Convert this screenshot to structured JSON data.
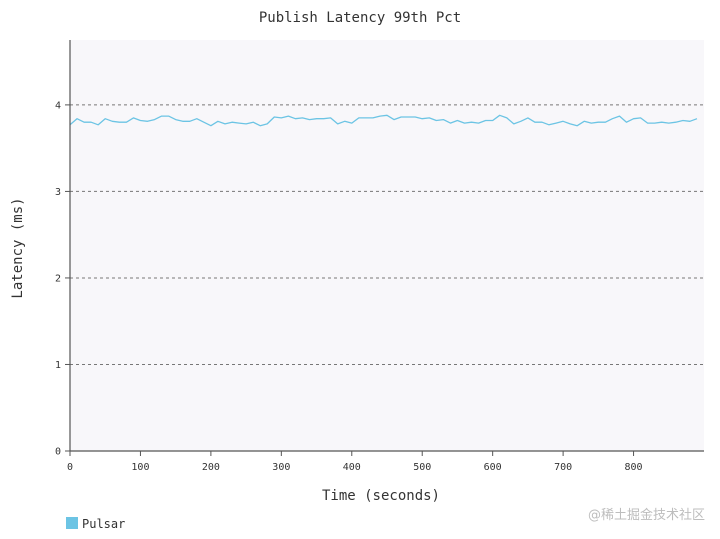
{
  "chart_data": {
    "type": "line",
    "title": "Publish Latency 99th Pct",
    "xlabel": "Time (seconds)",
    "ylabel": "Latency (ms)",
    "xlim": [
      0,
      900
    ],
    "ylim": [
      0,
      4.75
    ],
    "x_ticks": [
      0,
      100,
      200,
      300,
      400,
      500,
      600,
      700,
      800
    ],
    "y_ticks": [
      0,
      1,
      2,
      3,
      4
    ],
    "grid": "horizontal-dashed",
    "legend_position": "bottom-left",
    "series": [
      {
        "name": "Pulsar",
        "color": "#6cc4e4",
        "x": [
          0,
          10,
          20,
          30,
          40,
          50,
          60,
          70,
          80,
          90,
          100,
          110,
          120,
          130,
          140,
          150,
          160,
          170,
          180,
          190,
          200,
          210,
          220,
          230,
          240,
          250,
          260,
          270,
          280,
          290,
          300,
          310,
          320,
          330,
          340,
          350,
          360,
          370,
          380,
          390,
          400,
          410,
          420,
          430,
          440,
          450,
          460,
          470,
          480,
          490,
          500,
          510,
          520,
          530,
          540,
          550,
          560,
          570,
          580,
          590,
          600,
          610,
          620,
          630,
          640,
          650,
          660,
          670,
          680,
          690,
          700,
          710,
          720,
          730,
          740,
          750,
          760,
          770,
          780,
          790,
          800,
          810,
          820,
          830,
          840,
          850,
          860,
          870,
          880,
          890
        ],
        "y": [
          3.77,
          3.84,
          3.8,
          3.8,
          3.77,
          3.84,
          3.81,
          3.8,
          3.8,
          3.85,
          3.82,
          3.81,
          3.83,
          3.87,
          3.87,
          3.83,
          3.81,
          3.81,
          3.84,
          3.8,
          3.76,
          3.81,
          3.78,
          3.8,
          3.79,
          3.78,
          3.8,
          3.76,
          3.78,
          3.86,
          3.85,
          3.87,
          3.84,
          3.85,
          3.83,
          3.84,
          3.84,
          3.85,
          3.78,
          3.81,
          3.79,
          3.85,
          3.85,
          3.85,
          3.87,
          3.88,
          3.83,
          3.86,
          3.86,
          3.86,
          3.84,
          3.85,
          3.82,
          3.83,
          3.79,
          3.82,
          3.79,
          3.8,
          3.79,
          3.82,
          3.82,
          3.88,
          3.85,
          3.78,
          3.81,
          3.85,
          3.8,
          3.8,
          3.77,
          3.79,
          3.81,
          3.78,
          3.76,
          3.81,
          3.79,
          3.8,
          3.8,
          3.84,
          3.87,
          3.8,
          3.84,
          3.85,
          3.79,
          3.79,
          3.8,
          3.79,
          3.8,
          3.82,
          3.81,
          3.84
        ]
      }
    ]
  },
  "watermark": "@稀土掘金技术社区"
}
